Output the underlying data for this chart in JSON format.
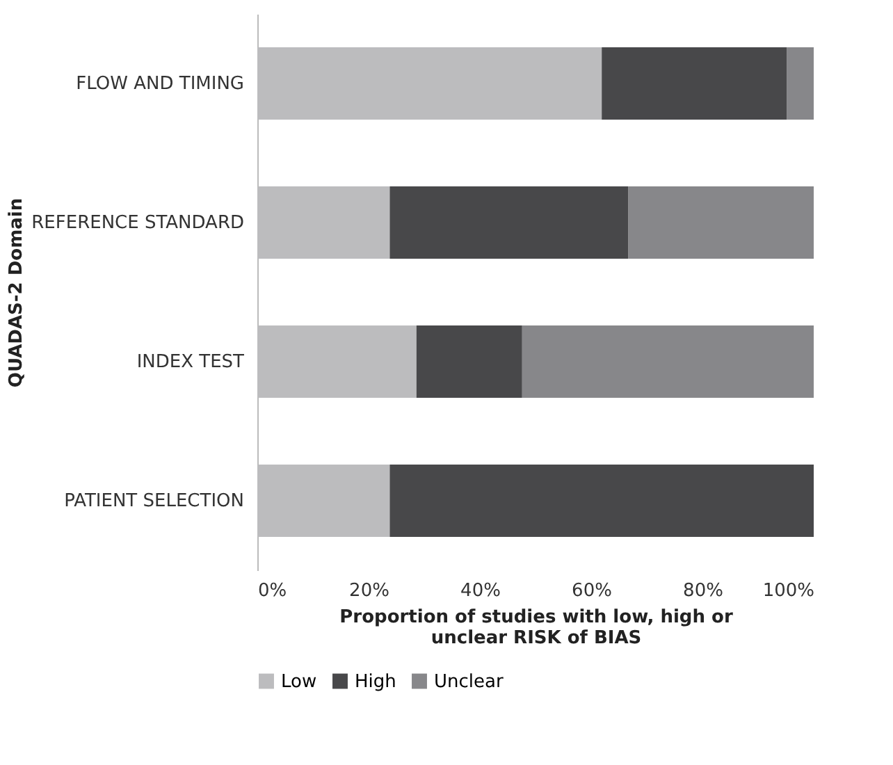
{
  "chart_data": {
    "type": "bar",
    "orientation": "horizontal",
    "stacked": true,
    "xlabel": "Proportion of studies with low, high or unclear RISK of BIAS",
    "ylabel": "QUADAS-2 Domain",
    "categories": [
      "FLOW AND TIMING",
      "REFERENCE STANDARD",
      "INDEX TEST",
      "PATIENT SELECTION"
    ],
    "series": [
      {
        "name": "Low",
        "color": "#bcbcbe",
        "values": [
          61.9,
          23.8,
          28.6,
          23.8
        ]
      },
      {
        "name": "High",
        "color": "#48484a",
        "values": [
          33.3,
          42.9,
          19.0,
          76.2
        ]
      },
      {
        "name": "Unclear",
        "color": "#87878a",
        "values": [
          4.8,
          33.3,
          52.4,
          0
        ]
      }
    ],
    "xlim": [
      0,
      100
    ],
    "xticks": [
      {
        "value": 0,
        "label": "0%"
      },
      {
        "value": 20,
        "label": "20%"
      },
      {
        "value": 40,
        "label": "40%"
      },
      {
        "value": 60,
        "label": "60%"
      },
      {
        "value": 80,
        "label": "80%"
      },
      {
        "value": 100,
        "label": "100%"
      }
    ],
    "grid": false,
    "legend": "bottom"
  }
}
